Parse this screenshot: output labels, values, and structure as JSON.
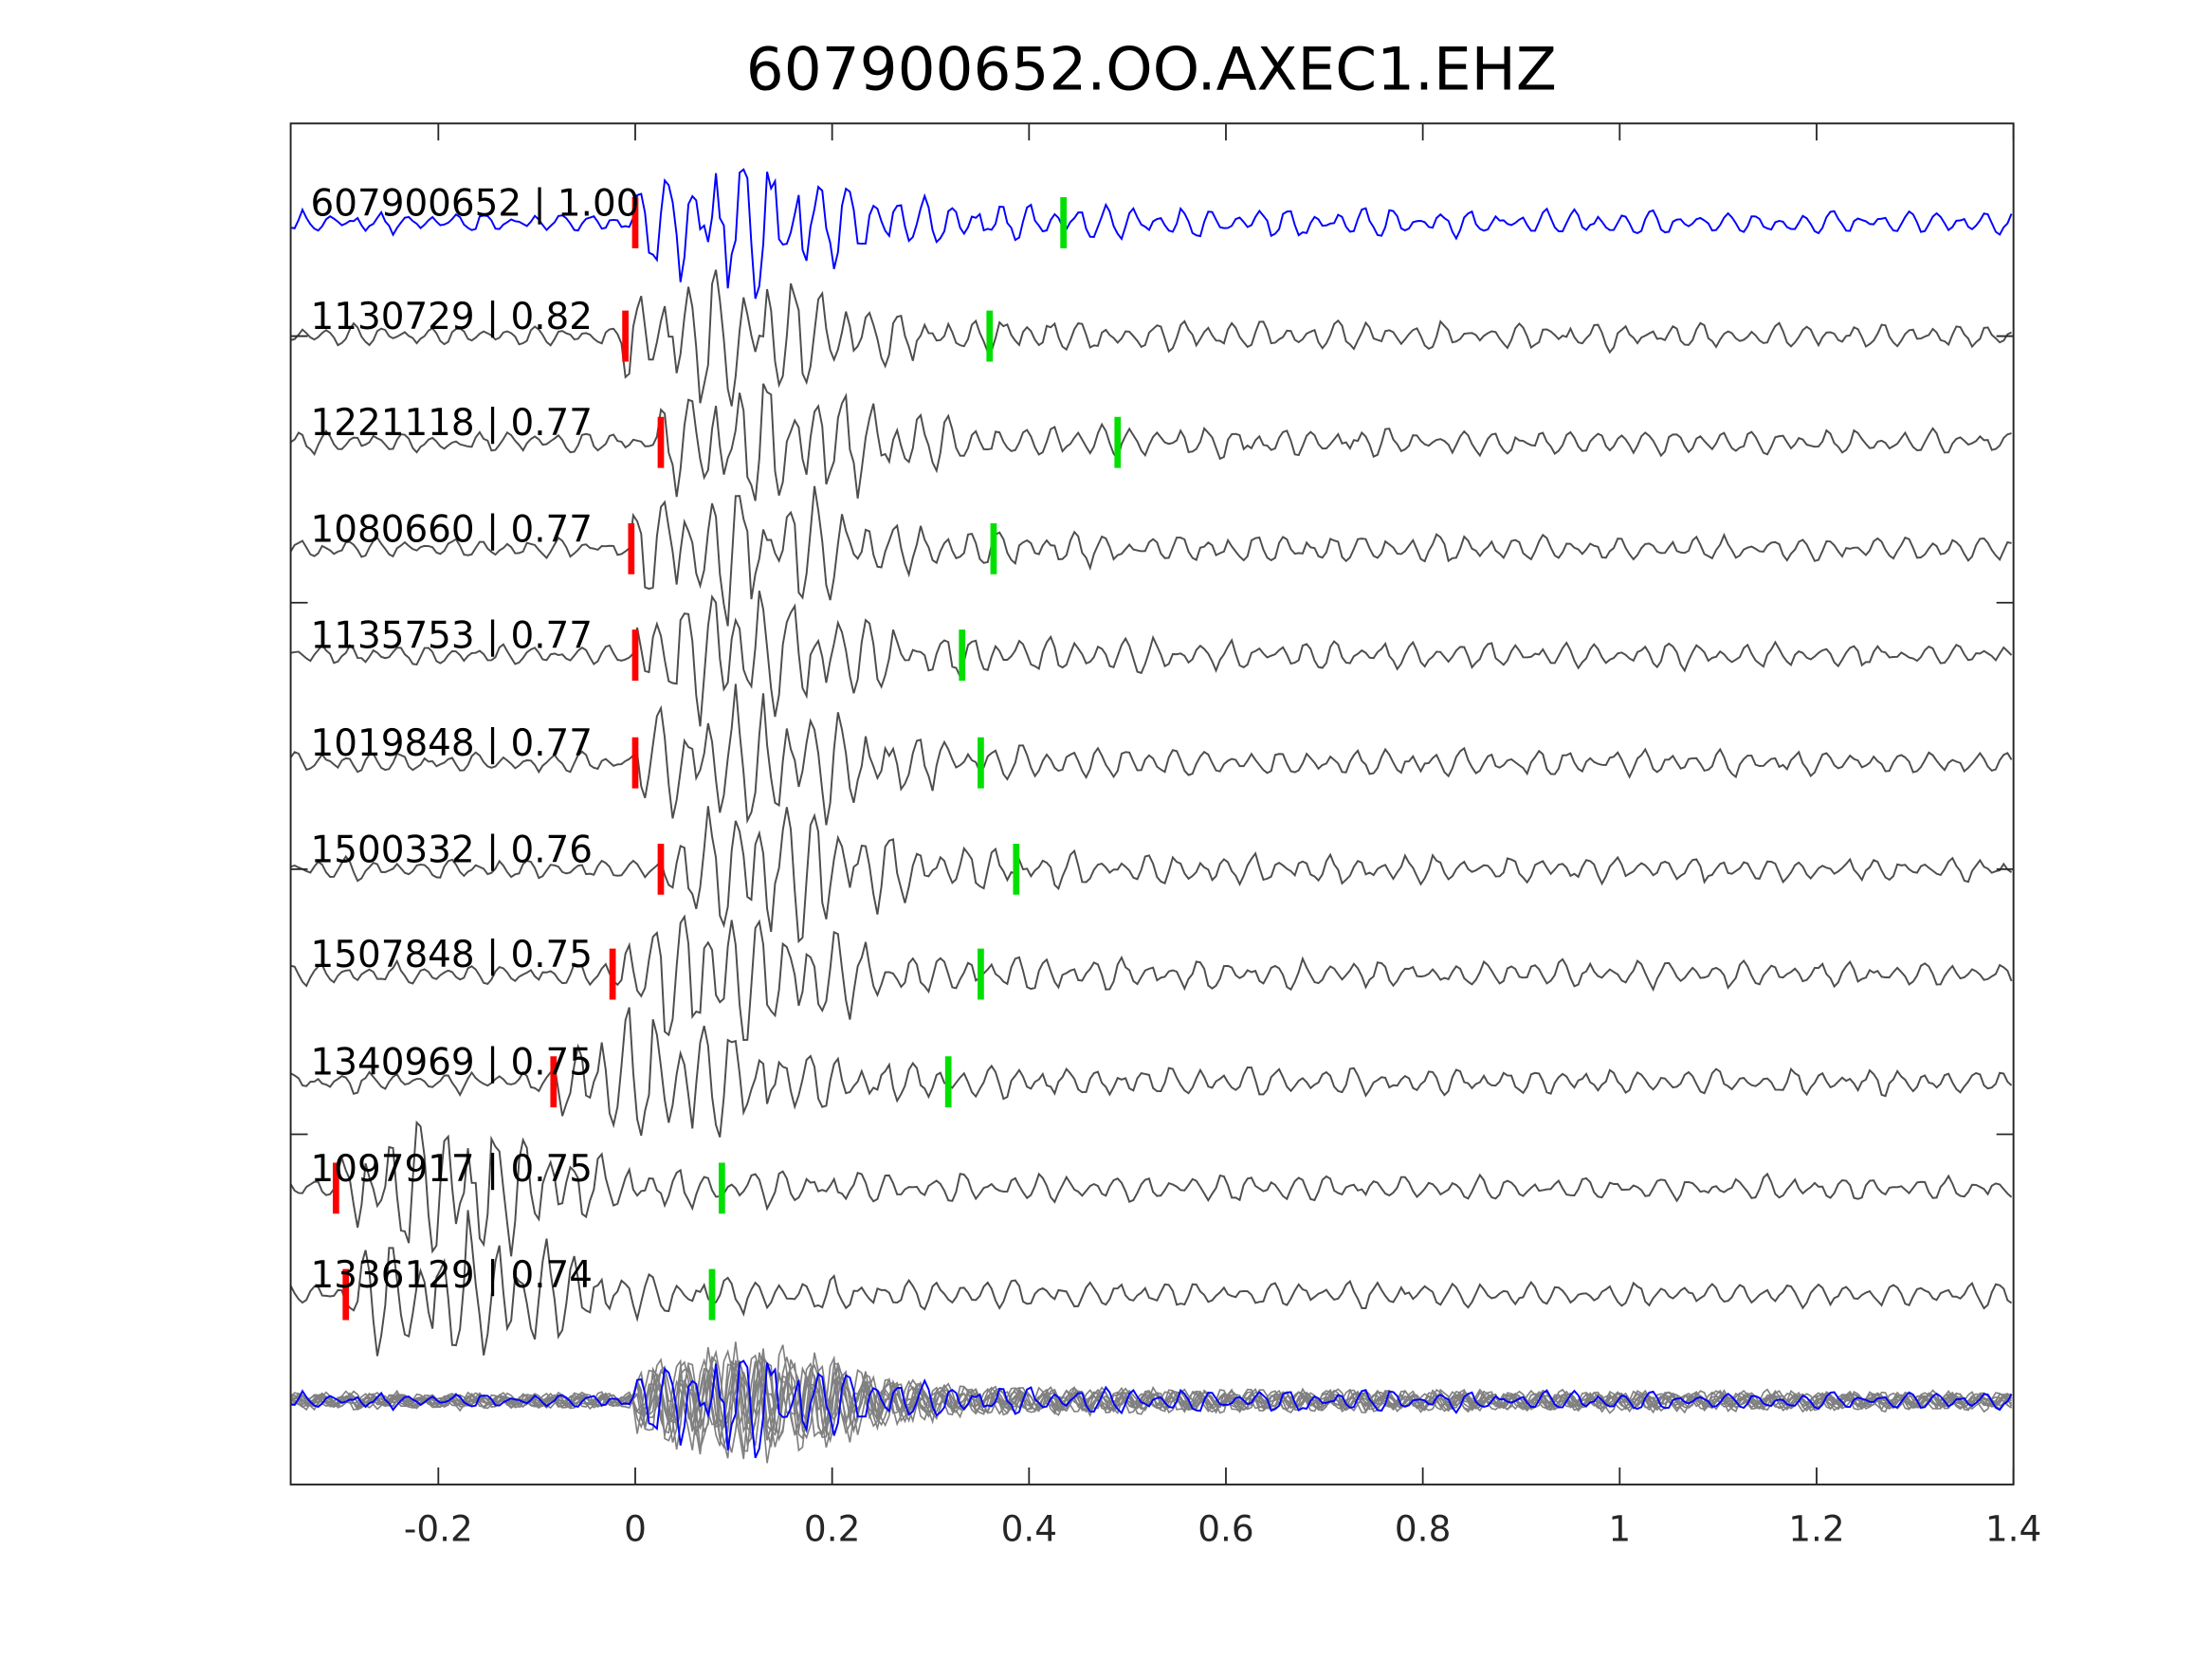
{
  "chart_data": {
    "type": "line",
    "title": "607900652.OO.AXEC1.EHZ",
    "xlabel": "",
    "ylabel": "",
    "xlim": [
      -0.35,
      1.4
    ],
    "xticks": [
      -0.2,
      0,
      0.2,
      0.4,
      0.6,
      0.8,
      1,
      1.2,
      1.4
    ],
    "xtick_labels": [
      "-0.2",
      "0",
      "0.2",
      "0.4",
      "0.6",
      "0.8",
      "1",
      "1.2",
      "1.4"
    ],
    "grid": false,
    "colors": {
      "template": "#0000ff",
      "trace": "#4d4d4d",
      "stack": "#808080",
      "p_pick": "#ff0000",
      "s_pick": "#00e000"
    },
    "traces": [
      {
        "label": "607900652 | 1.00",
        "id": "607900652",
        "cc": 1.0,
        "p_pick": 0.0,
        "s_pick": 0.435,
        "template": true
      },
      {
        "label": "1130729 | 0.82",
        "id": "1130729",
        "cc": 0.82,
        "p_pick": -0.01,
        "s_pick": 0.36
      },
      {
        "label": "1221118 | 0.77",
        "id": "1221118",
        "cc": 0.77,
        "p_pick": 0.026,
        "s_pick": 0.49
      },
      {
        "label": "1080660 | 0.77",
        "id": "1080660",
        "cc": 0.77,
        "p_pick": -0.004,
        "s_pick": 0.364
      },
      {
        "label": "1135753 | 0.77",
        "id": "1135753",
        "cc": 0.77,
        "p_pick": 0.0,
        "s_pick": 0.332
      },
      {
        "label": "1019848 | 0.77",
        "id": "1019848",
        "cc": 0.77,
        "p_pick": 0.0,
        "s_pick": 0.351
      },
      {
        "label": "1500332 | 0.76",
        "id": "1500332",
        "cc": 0.76,
        "p_pick": 0.026,
        "s_pick": 0.387
      },
      {
        "label": "1507848 | 0.75",
        "id": "1507848",
        "cc": 0.75,
        "p_pick": -0.023,
        "s_pick": 0.351
      },
      {
        "label": "1340969 | 0.75",
        "id": "1340969",
        "cc": 0.75,
        "p_pick": -0.083,
        "s_pick": 0.318
      },
      {
        "label": "1097917 | 0.75",
        "id": "1097917",
        "cc": 0.75,
        "p_pick": -0.304,
        "s_pick": 0.088
      },
      {
        "label": "1336129 | 0.74",
        "id": "1336129",
        "cc": 0.74,
        "p_pick": -0.294,
        "s_pick": 0.078
      }
    ]
  }
}
